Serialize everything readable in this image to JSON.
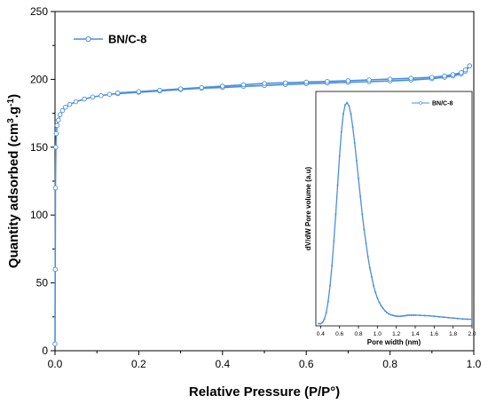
{
  "chart_data": [
    {
      "type": "line",
      "title": "",
      "xlabel": "Relative Pressure (P/P°)",
      "ylabel_main": "Quantity adsorbed (cm",
      "ylabel_sup1": "3",
      "ylabel_mid": ".g",
      "ylabel_sup2": "-1",
      "ylabel_end": ")",
      "xlim": [
        0,
        1.0
      ],
      "ylim": [
        0,
        250
      ],
      "xticks": [
        0.0,
        0.2,
        0.4,
        0.6,
        0.8,
        1.0
      ],
      "xtick_labels": [
        "0.0",
        "0.2",
        "0.4",
        "0.6",
        "0.8",
        "1.0"
      ],
      "yticks": [
        0,
        50,
        100,
        150,
        200,
        250
      ],
      "ytick_labels": [
        "0",
        "50",
        "100",
        "150",
        "200",
        "250"
      ],
      "grid": false,
      "legend_position": "top-left",
      "color": "#4a8fdc",
      "series": [
        {
          "name": "BN/C-8",
          "segment": "adsorption",
          "x": [
            0.0,
            0.0005,
            0.001,
            0.002,
            0.003,
            0.005,
            0.008,
            0.012,
            0.018,
            0.025,
            0.035,
            0.05,
            0.07,
            0.09,
            0.11,
            0.13,
            0.15,
            0.2,
            0.25,
            0.3,
            0.35,
            0.4,
            0.45,
            0.5,
            0.55,
            0.6,
            0.65,
            0.7,
            0.75,
            0.8,
            0.85,
            0.9,
            0.93,
            0.95,
            0.97,
            0.98,
            0.99
          ],
          "y": [
            5,
            60,
            120,
            150,
            160,
            166,
            170,
            174,
            177,
            179.5,
            181.5,
            183.5,
            185.5,
            187,
            188,
            189,
            189.5,
            190.5,
            191.5,
            192.5,
            193.5,
            194,
            194.8,
            195.5,
            196.2,
            196.8,
            197.3,
            197.8,
            198.3,
            198.8,
            199.5,
            200.5,
            201.5,
            202.5,
            204,
            206,
            210
          ]
        },
        {
          "name": "",
          "segment": "desorption",
          "x": [
            0.99,
            0.98,
            0.97,
            0.95,
            0.93,
            0.9,
            0.85,
            0.8,
            0.75,
            0.7,
            0.65,
            0.6,
            0.55,
            0.5,
            0.45,
            0.4,
            0.35,
            0.3,
            0.25,
            0.2,
            0.15
          ],
          "y": [
            210,
            207,
            205,
            203.5,
            202.5,
            201.5,
            200.8,
            200.2,
            199.6,
            199,
            198.5,
            198,
            197.5,
            197,
            196,
            195,
            194,
            193,
            192,
            191,
            190
          ]
        }
      ]
    },
    {
      "type": "line",
      "title": "",
      "xlabel": "Pore width (nm)",
      "ylabel": "dV/dW Pore volume (a.u)",
      "xlim": [
        0.35,
        2.0
      ],
      "ylim": [
        0,
        1.05
      ],
      "xticks": [
        0.4,
        0.6,
        0.8,
        1.0,
        1.2,
        1.4,
        1.6,
        1.8,
        2.0
      ],
      "xtick_labels": [
        "0.4",
        "0.6",
        "0.8",
        "1.0",
        "1.2",
        "1.4",
        "1.6",
        "1.8",
        "2.0"
      ],
      "grid": false,
      "legend_position": "top-right",
      "color": "#4a8fdc",
      "series": [
        {
          "name": "BN/C-8",
          "x": [
            0.38,
            0.4,
            0.42,
            0.44,
            0.46,
            0.48,
            0.5,
            0.52,
            0.54,
            0.56,
            0.58,
            0.6,
            0.62,
            0.64,
            0.66,
            0.68,
            0.7,
            0.72,
            0.74,
            0.76,
            0.78,
            0.8,
            0.82,
            0.84,
            0.86,
            0.88,
            0.9,
            0.92,
            0.94,
            0.96,
            0.98,
            1.0,
            1.02,
            1.04,
            1.06,
            1.08,
            1.1,
            1.12,
            1.14,
            1.16,
            1.18,
            1.2,
            1.22,
            1.24,
            1.26,
            1.28,
            1.3,
            1.32,
            1.34,
            1.36,
            1.38,
            1.4,
            1.45,
            1.5,
            1.55,
            1.6,
            1.65,
            1.7,
            1.75,
            1.8,
            1.85,
            1.9,
            1.95,
            2.0
          ],
          "y": [
            0.01,
            0.01,
            0.015,
            0.03,
            0.06,
            0.11,
            0.18,
            0.27,
            0.38,
            0.5,
            0.63,
            0.76,
            0.87,
            0.95,
            0.99,
            1.0,
            0.985,
            0.95,
            0.89,
            0.82,
            0.74,
            0.66,
            0.58,
            0.5,
            0.43,
            0.37,
            0.31,
            0.26,
            0.22,
            0.18,
            0.15,
            0.125,
            0.105,
            0.09,
            0.078,
            0.068,
            0.06,
            0.054,
            0.05,
            0.047,
            0.045,
            0.044,
            0.043,
            0.043,
            0.044,
            0.045,
            0.046,
            0.047,
            0.048,
            0.048,
            0.048,
            0.048,
            0.047,
            0.046,
            0.045,
            0.043,
            0.041,
            0.039,
            0.037,
            0.035,
            0.033,
            0.031,
            0.03,
            0.029
          ]
        }
      ]
    }
  ]
}
